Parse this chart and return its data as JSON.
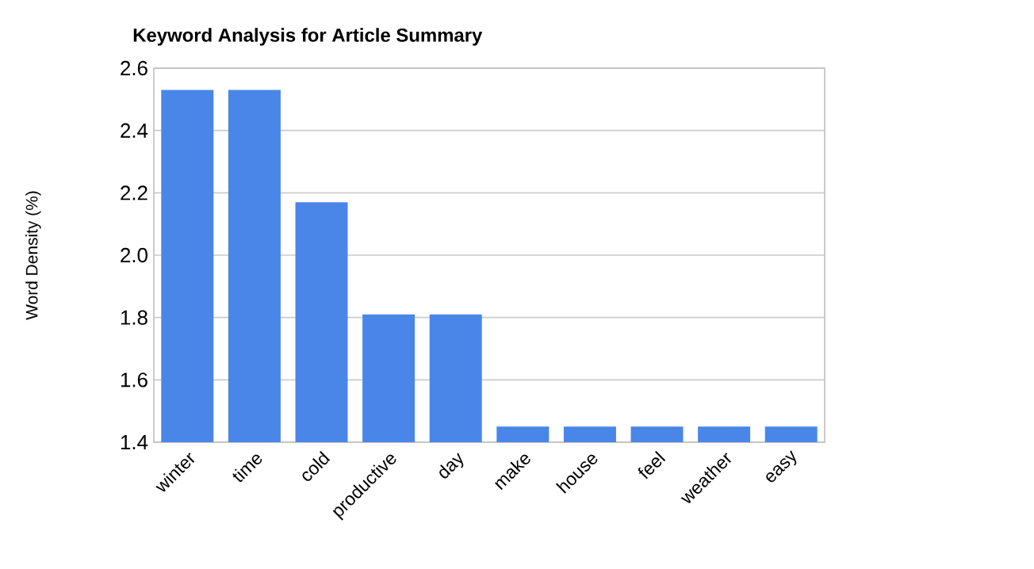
{
  "chart_data": {
    "type": "bar",
    "title": "Keyword Analysis for Article Summary",
    "ylabel": "Word Density (%)",
    "categories": [
      "winter",
      "time",
      "cold",
      "productive",
      "day",
      "make",
      "house",
      "feel",
      "weather",
      "easy"
    ],
    "values": [
      2.53,
      2.53,
      2.17,
      1.81,
      1.81,
      1.45,
      1.45,
      1.45,
      1.45,
      1.45
    ],
    "color": "#4a86e8",
    "ylim": [
      1.4,
      2.6
    ],
    "yticks": [
      1.4,
      1.6,
      1.8,
      {
        "value": 2,
        "label": "2.0"
      },
      2.2,
      2.4,
      2.6
    ],
    "grid": true
  }
}
